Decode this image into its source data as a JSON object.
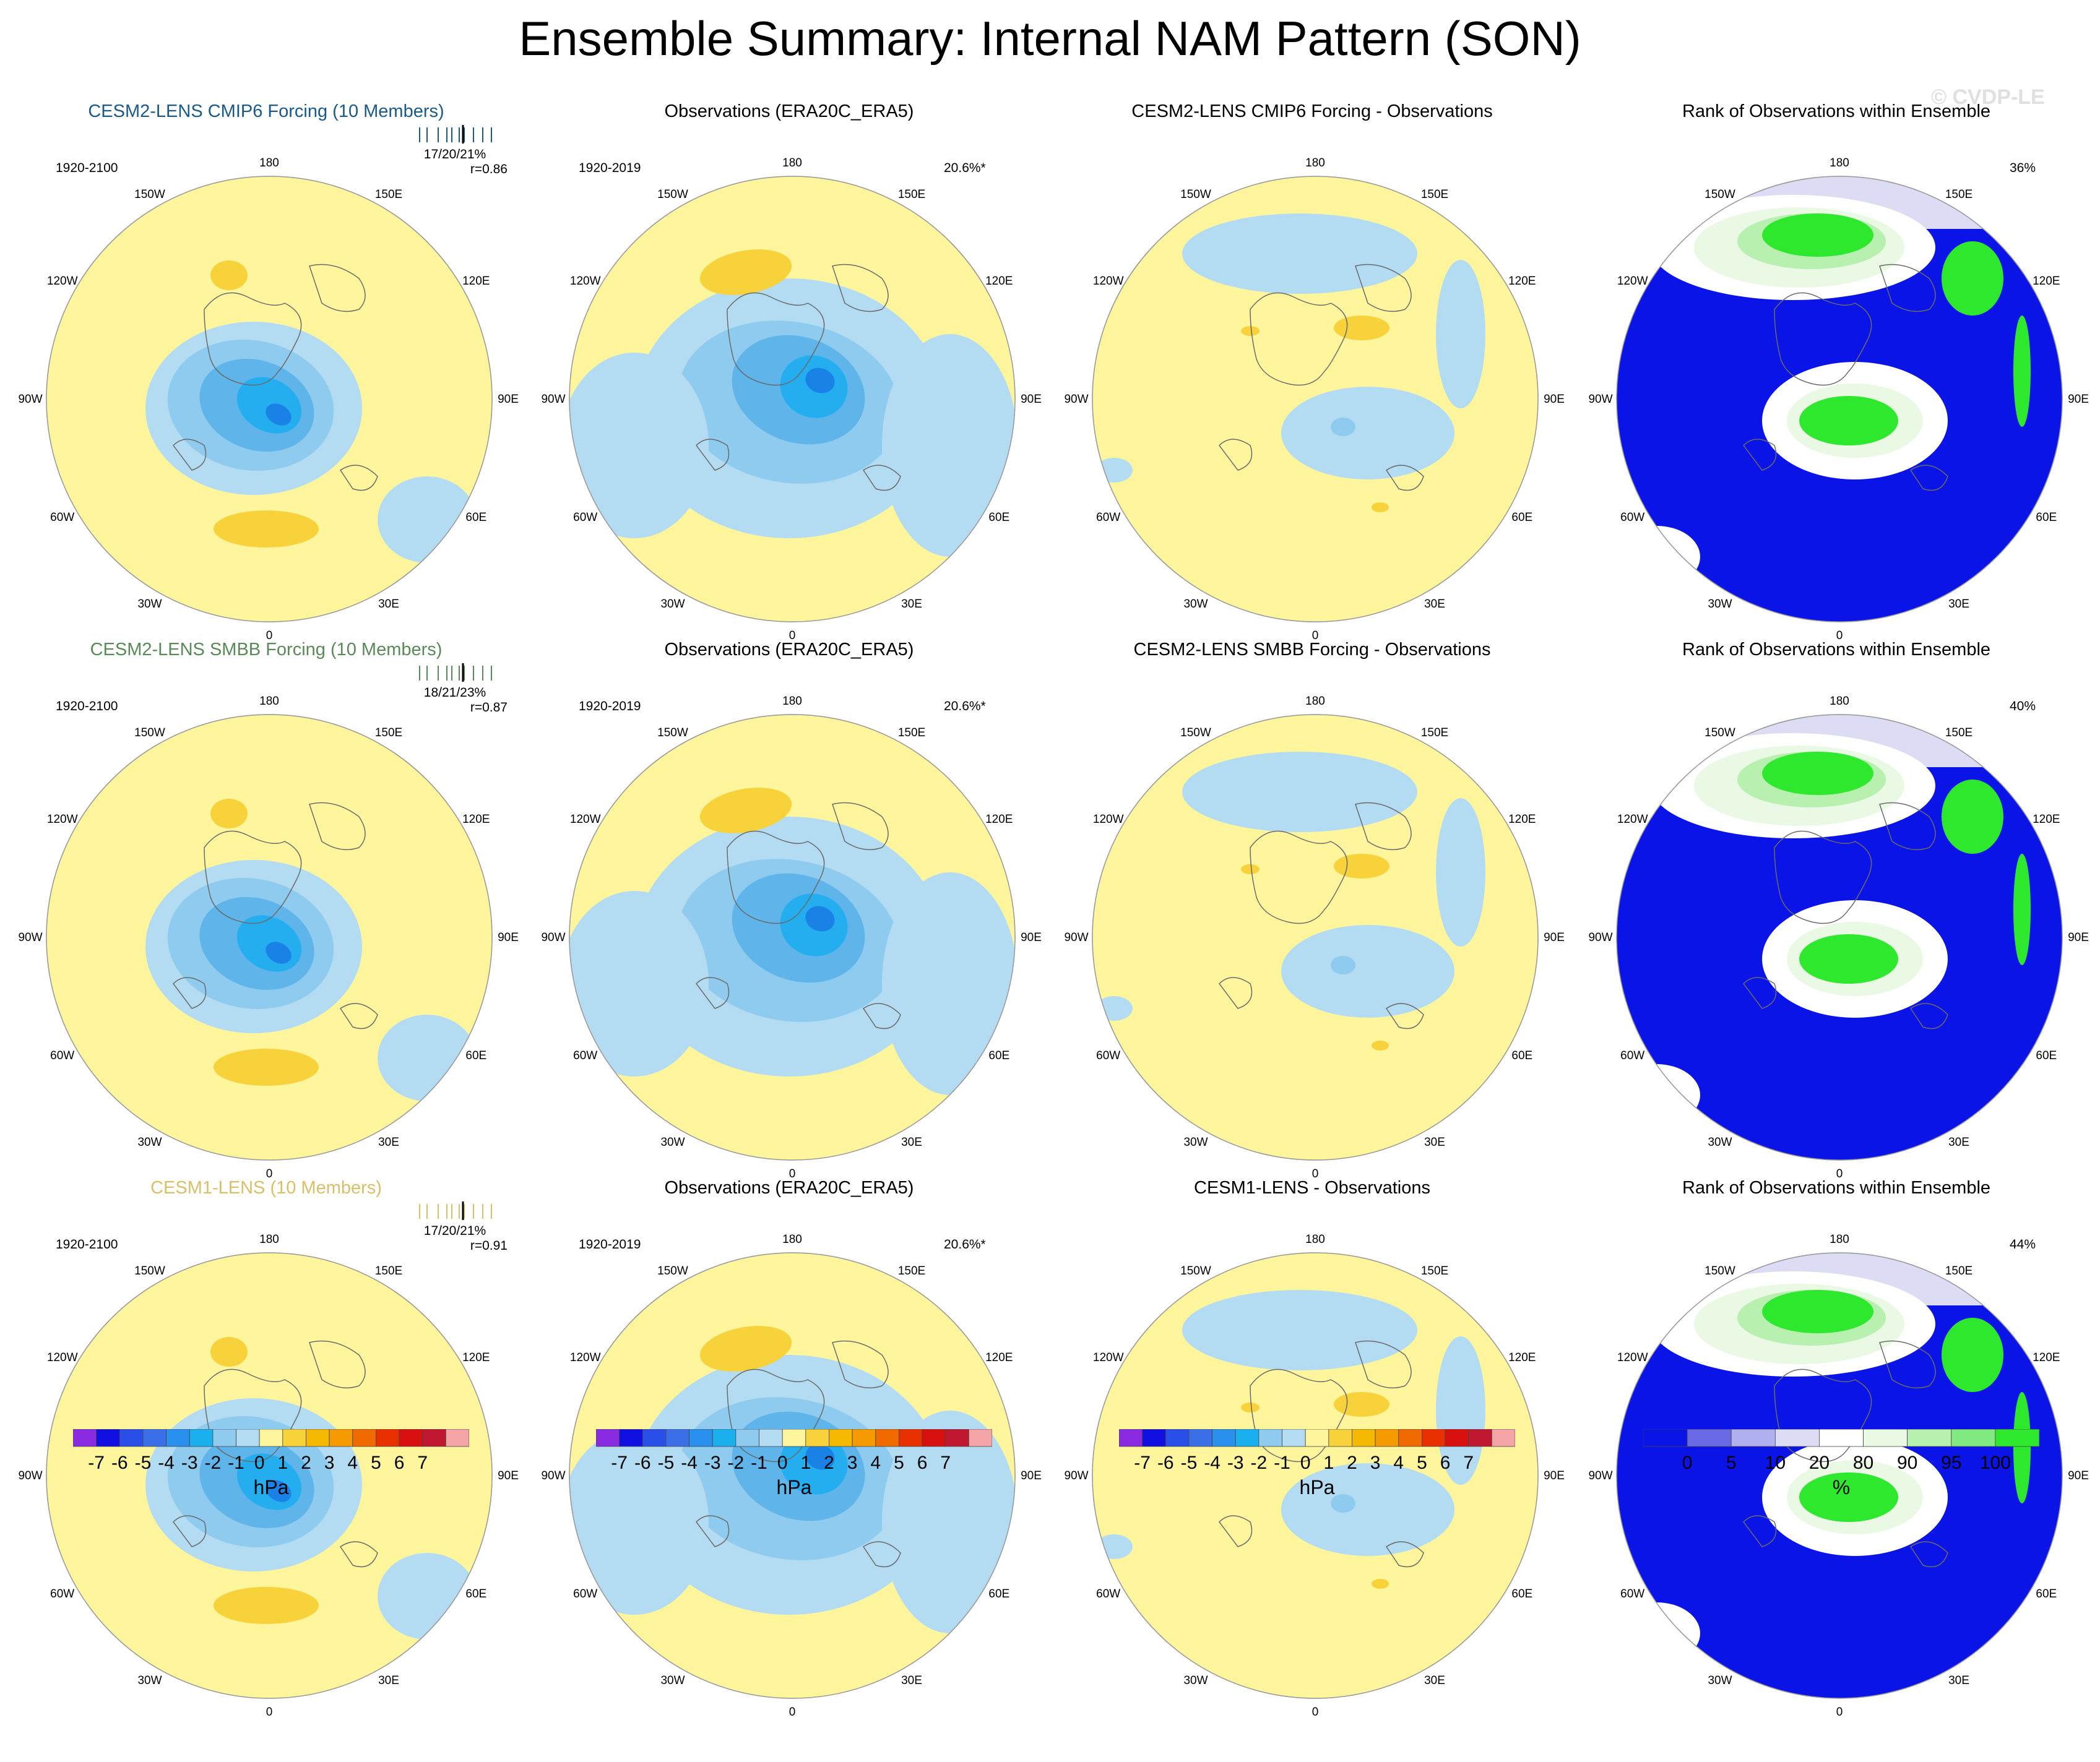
{
  "title": "Ensemble Summary: Internal NAM Pattern (SON)",
  "watermark": "© CVDP-LE",
  "lon_labels": [
    "180",
    "150E",
    "120E",
    "90E",
    "60E",
    "30E",
    "0",
    "30W",
    "60W",
    "90W",
    "120W",
    "150W"
  ],
  "colors": {
    "yellow": "#fff59d",
    "light_blue": "#b3dcf2",
    "blue2": "#8ecbee",
    "blue3": "#5fb4ea",
    "blue4": "#24aef0",
    "blue5": "#1a82e6",
    "orange1": "#f8d23a",
    "orange2": "#f5b800",
    "rank_blue": "#0a14e6",
    "rank_white": "#ffffff",
    "rank_pale": "#e9f9e4",
    "rank_lightgreen": "#b8f0b0",
    "rank_green": "#2ee82e",
    "rank_lav": "#dcdcf5",
    "title_row1": "#1a5a8a",
    "title_row2": "#5a8a5a",
    "title_row3": "#d8c06a"
  },
  "rows": [
    {
      "model": {
        "title": "CESM2-LENS CMIP6 Forcing (10 Members)",
        "period": "1920-2100",
        "pct": "17/20/21%",
        "r": "r=0.86"
      },
      "obs": {
        "title": "Observations (ERA20C_ERA5)",
        "period": "1920-2019",
        "pct": "20.6%*"
      },
      "diff": {
        "title": "CESM2-LENS CMIP6 Forcing - Observations"
      },
      "rank": {
        "title": "Rank of Observations within Ensemble",
        "pct": "36%"
      }
    },
    {
      "model": {
        "title": "CESM2-LENS SMBB Forcing (10 Members)",
        "period": "1920-2100",
        "pct": "18/21/23%",
        "r": "r=0.87"
      },
      "obs": {
        "title": "Observations (ERA20C_ERA5)",
        "period": "1920-2019",
        "pct": "20.6%*"
      },
      "diff": {
        "title": "CESM2-LENS SMBB Forcing - Observations"
      },
      "rank": {
        "title": "Rank of Observations within Ensemble",
        "pct": "40%"
      }
    },
    {
      "model": {
        "title": "CESM1-LENS (10 Members)",
        "period": "1920-2100",
        "pct": "17/20/21%",
        "r": "r=0.91"
      },
      "obs": {
        "title": "Observations (ERA20C_ERA5)",
        "period": "1920-2019",
        "pct": "20.6%*"
      },
      "diff": {
        "title": "CESM1-LENS - Observations"
      },
      "rank": {
        "title": "Rank of Observations within Ensemble",
        "pct": "44%"
      }
    }
  ],
  "colorbar_hpa": {
    "labels": [
      "-7",
      "-6",
      "-5",
      "-4",
      "-3",
      "-2",
      "-1",
      "0",
      "1",
      "2",
      "3",
      "4",
      "5",
      "6",
      "7"
    ],
    "unit": "hPa",
    "colors": [
      "#8a2be2",
      "#1010e0",
      "#2a4fe8",
      "#3a6fe8",
      "#2a90ee",
      "#1ab0f0",
      "#8ecbee",
      "#b3dcf2",
      "#fff59d",
      "#f8d23a",
      "#f5b800",
      "#f59a00",
      "#f06a00",
      "#e83000",
      "#d81010",
      "#c01830",
      "#f5a5a5"
    ]
  },
  "colorbar_pct": {
    "labels": [
      "0",
      "5",
      "10",
      "20",
      "80",
      "90",
      "95",
      "100"
    ],
    "unit": "%",
    "colors": [
      "#0a14e6",
      "#6a6ae6",
      "#b0b0f0",
      "#dcdcf5",
      "#ffffff",
      "#e9f9e4",
      "#b8f0b0",
      "#80ea80",
      "#2ee82e"
    ]
  }
}
